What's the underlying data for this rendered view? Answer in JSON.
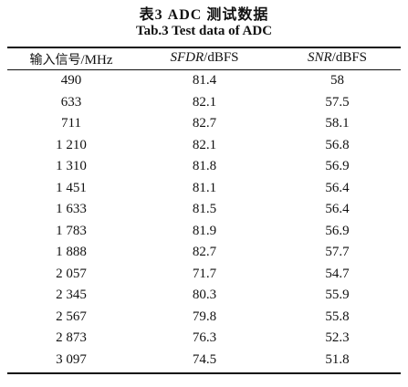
{
  "caption": {
    "title_cn": "表3   ADC 测试数据",
    "title_en": "Tab.3    Test data of ADC"
  },
  "table": {
    "headers": [
      {
        "main": "输入信号",
        "unit": "/MHz"
      },
      {
        "main": "SFDR",
        "unit": "/dBFS"
      },
      {
        "main": "SNR",
        "unit": "/dBFS"
      }
    ],
    "rows": [
      [
        "490",
        "81.4",
        "58"
      ],
      [
        "633",
        "82.1",
        "57.5"
      ],
      [
        "711",
        "82.7",
        "58.1"
      ],
      [
        "1 210",
        "82.1",
        "56.8"
      ],
      [
        "1 310",
        "81.8",
        "56.9"
      ],
      [
        "1 451",
        "81.1",
        "56.4"
      ],
      [
        "1 633",
        "81.5",
        "56.4"
      ],
      [
        "1 783",
        "81.9",
        "56.9"
      ],
      [
        "1 888",
        "82.7",
        "57.7"
      ],
      [
        "2 057",
        "71.7",
        "54.7"
      ],
      [
        "2 345",
        "80.3",
        "55.9"
      ],
      [
        "2 567",
        "79.8",
        "55.8"
      ],
      [
        "2 873",
        "76.3",
        "52.3"
      ],
      [
        "3 097",
        "74.5",
        "51.8"
      ]
    ]
  }
}
